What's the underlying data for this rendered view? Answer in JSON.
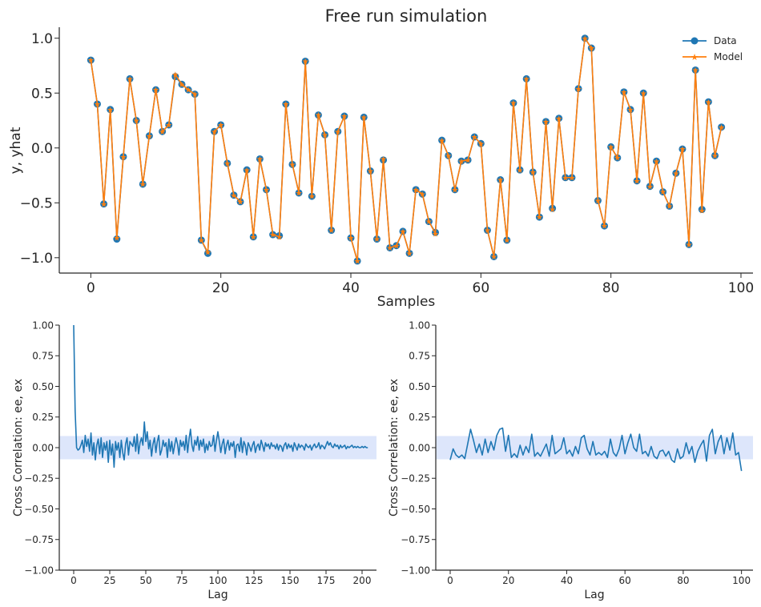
{
  "chart_data": [
    {
      "type": "line",
      "title": "Free run simulation",
      "xlabel": "Samples",
      "ylabel": "y, yhat",
      "xlim": [
        -4.85,
        101.85
      ],
      "ylim": [
        -1.14,
        1.1
      ],
      "xticks": [
        0,
        20,
        40,
        60,
        80,
        100
      ],
      "yticks": [
        -1.0,
        -0.5,
        0.0,
        0.5,
        1.0
      ],
      "ytick_labels": [
        "−1.0",
        "−0.5",
        "0.0",
        "0.5",
        "1.0"
      ],
      "grid": false,
      "legend": "top-right",
      "series": [
        {
          "name": "Data",
          "color": "#1f77b4",
          "marker": "circle",
          "values": [
            0.8,
            0.4,
            -0.51,
            0.35,
            -0.83,
            -0.08,
            0.63,
            0.25,
            -0.33,
            0.11,
            0.53,
            0.15,
            0.21,
            0.65,
            0.58,
            0.53,
            0.49,
            -0.84,
            -0.96,
            0.15,
            0.21,
            -0.14,
            -0.43,
            -0.49,
            -0.2,
            -0.81,
            -0.1,
            -0.38,
            -0.79,
            -0.8,
            0.4,
            -0.15,
            -0.41,
            0.79,
            -0.44,
            0.3,
            0.12,
            -0.75,
            0.15,
            0.29,
            -0.82,
            -1.03,
            0.28,
            -0.21,
            -0.83,
            -0.11,
            -0.91,
            -0.89,
            -0.76,
            -0.96,
            -0.38,
            -0.42,
            -0.67,
            -0.77,
            0.07,
            -0.07,
            -0.38,
            -0.12,
            -0.11,
            0.1,
            0.04,
            -0.75,
            -0.99,
            -0.29,
            -0.84,
            0.41,
            -0.2,
            0.63,
            -0.22,
            -0.63,
            0.24,
            -0.55,
            0.27,
            -0.27,
            -0.27,
            0.54,
            1.0,
            0.91,
            -0.48,
            -0.71,
            0.01,
            -0.09,
            0.51,
            0.35,
            -0.3,
            0.5,
            -0.35,
            -0.12,
            -0.4,
            -0.53,
            -0.23,
            -0.01,
            -0.88,
            0.71,
            -0.56,
            0.42,
            -0.07,
            0.19
          ]
        },
        {
          "name": "Model",
          "color": "#ff7f0e",
          "marker": "star",
          "values": [
            0.8,
            0.4,
            -0.51,
            0.35,
            -0.82,
            -0.08,
            0.63,
            0.25,
            -0.33,
            0.11,
            0.53,
            0.15,
            0.21,
            0.67,
            0.58,
            0.53,
            0.49,
            -0.84,
            -0.95,
            0.15,
            0.21,
            -0.14,
            -0.43,
            -0.49,
            -0.2,
            -0.81,
            -0.1,
            -0.38,
            -0.79,
            -0.81,
            0.4,
            -0.15,
            -0.41,
            0.79,
            -0.44,
            0.3,
            0.12,
            -0.75,
            0.15,
            0.29,
            -0.82,
            -1.03,
            0.28,
            -0.21,
            -0.83,
            -0.1,
            -0.91,
            -0.89,
            -0.76,
            -0.96,
            -0.38,
            -0.42,
            -0.67,
            -0.78,
            0.07,
            -0.07,
            -0.38,
            -0.12,
            -0.11,
            0.1,
            0.04,
            -0.75,
            -0.99,
            -0.29,
            -0.84,
            0.41,
            -0.2,
            0.63,
            -0.22,
            -0.63,
            0.24,
            -0.56,
            0.27,
            -0.27,
            -0.27,
            0.54,
            1.0,
            0.91,
            -0.48,
            -0.71,
            0.01,
            -0.09,
            0.51,
            0.35,
            -0.3,
            0.5,
            -0.35,
            -0.12,
            -0.4,
            -0.53,
            -0.23,
            -0.01,
            -0.88,
            0.71,
            -0.57,
            0.42,
            -0.07,
            0.19
          ]
        }
      ]
    },
    {
      "type": "line",
      "title": "",
      "xlabel": "Lag",
      "ylabel": "Cross Correlation: ee, ex",
      "xlim": [
        -10,
        210
      ],
      "ylim": [
        -1.0,
        1.0
      ],
      "xticks": [
        0,
        25,
        50,
        75,
        100,
        125,
        150,
        175,
        200
      ],
      "yticks": [
        1.0,
        0.75,
        0.5,
        0.25,
        0.0,
        -0.25,
        -0.5,
        -0.75,
        -1.0
      ],
      "ytick_labels": [
        "1.00",
        "0.75",
        "0.50",
        "0.25",
        "0.00",
        "−0.25",
        "−0.50",
        "−0.75",
        "−1.00"
      ],
      "confidence_band": [
        -0.095,
        0.095
      ],
      "band_color": "#dde6fb",
      "grid": false,
      "series": [
        {
          "color": "#1f77b4",
          "x_start": 0,
          "values": [
            1.0,
            0.3,
            0.0,
            -0.02,
            -0.01,
            0.02,
            0.06,
            -0.04,
            0.1,
            0.01,
            0.07,
            -0.03,
            0.12,
            -0.06,
            0.04,
            -0.1,
            0.02,
            0.07,
            -0.05,
            0.08,
            -0.08,
            0.04,
            -0.02,
            0.05,
            -0.12,
            0.06,
            -0.06,
            0.03,
            -0.16,
            0.05,
            -0.02,
            0.04,
            -0.08,
            0.06,
            -0.04,
            -0.1,
            0.03,
            0.08,
            -0.06,
            0.05,
            0.03,
            0.01,
            0.09,
            -0.03,
            0.11,
            -0.05,
            0.04,
            0.08,
            0.02,
            0.21,
            0.05,
            0.13,
            -0.01,
            0.06,
            -0.07,
            0.03,
            0.08,
            -0.04,
            0.05,
            0.1,
            -0.06,
            -0.02,
            0.06,
            0.01,
            0.04,
            -0.08,
            0.07,
            -0.03,
            0.05,
            -0.05,
            0.02,
            0.08,
            0.03,
            -0.06,
            0.06,
            0.01,
            0.05,
            -0.02,
            0.1,
            -0.04,
            0.07,
            0.15,
            0.02,
            -0.03,
            0.06,
            0.02,
            0.09,
            -0.02,
            0.06,
            0.01,
            0.07,
            -0.04,
            0.03,
            -0.02,
            0.05,
            0.01,
            0.02,
            0.1,
            -0.03,
            0.06,
            0.13,
            0.05,
            -0.04,
            0.03,
            0.07,
            -0.05,
            0.02,
            0.06,
            -0.02,
            0.04,
            0.01,
            0.05,
            -0.08,
            0.02,
            0.03,
            -0.03,
            0.08,
            -0.04,
            0.05,
            0.02,
            -0.06,
            0.04,
            0.01,
            -0.03,
            0.02,
            0.05,
            -0.04,
            0.01,
            0.03,
            -0.02,
            0.06,
            0.02,
            -0.03,
            0.04,
            0.01,
            0.03,
            -0.01,
            0.04,
            0.01,
            0.02,
            -0.01,
            0.03,
            -0.02,
            0.02,
            0.01,
            -0.03,
            0.02,
            0.04,
            -0.01,
            0.03,
            0.0,
            0.02,
            -0.03,
            0.04,
            0.01,
            -0.02,
            0.03,
            0.0,
            0.02,
            0.01,
            -0.02,
            0.03,
            0.01,
            0.0,
            0.02,
            -0.02,
            0.01,
            0.03,
            0.0,
            0.01,
            0.04,
            -0.01,
            0.02,
            0.01,
            -0.01,
            0.02,
            0.05,
            0.02,
            0.04,
            0.01,
            0.0,
            0.03,
            0.01,
            0.02,
            -0.01,
            0.02,
            0.0,
            0.01,
            0.02,
            -0.01,
            0.01,
            0.0,
            0.01,
            0.02,
            0.0,
            0.01,
            0.0,
            0.01,
            0.0,
            0.0,
            0.01,
            0.0,
            0.01,
            0.0,
            0.0
          ]
        }
      ]
    },
    {
      "type": "line",
      "title": "",
      "xlabel": "Lag",
      "ylabel": "Cross Correlation: ee, ex",
      "xlim": [
        -4.95,
        103.95
      ],
      "ylim": [
        -1.0,
        1.0
      ],
      "xticks": [
        0,
        20,
        40,
        60,
        80,
        100
      ],
      "yticks": [
        1.0,
        0.75,
        0.5,
        0.25,
        0.0,
        -0.25,
        -0.5,
        -0.75,
        -1.0
      ],
      "ytick_labels": [
        "1.00",
        "0.75",
        "0.50",
        "0.25",
        "0.00",
        "−0.25",
        "−0.50",
        "−0.75",
        "−1.00"
      ],
      "confidence_band": [
        -0.095,
        0.095
      ],
      "band_color": "#dde6fb",
      "grid": false,
      "series": [
        {
          "color": "#1f77b4",
          "x_start": 0,
          "values": [
            -0.1,
            -0.01,
            -0.06,
            -0.08,
            -0.06,
            -0.09,
            0.03,
            0.15,
            0.06,
            -0.04,
            0.03,
            -0.06,
            0.07,
            -0.04,
            0.05,
            -0.02,
            0.1,
            0.15,
            0.16,
            -0.03,
            0.1,
            -0.08,
            -0.05,
            -0.08,
            0.02,
            -0.06,
            0.01,
            -0.04,
            0.11,
            -0.07,
            -0.04,
            -0.07,
            -0.02,
            0.03,
            -0.07,
            0.1,
            -0.05,
            -0.03,
            -0.01,
            0.08,
            -0.05,
            -0.02,
            -0.07,
            0.01,
            -0.05,
            0.08,
            0.1,
            -0.01,
            -0.06,
            0.05,
            -0.06,
            -0.04,
            -0.06,
            -0.03,
            -0.08,
            0.07,
            -0.04,
            -0.07,
            -0.01,
            0.1,
            -0.05,
            0.04,
            0.11,
            0.0,
            -0.03,
            0.11,
            -0.05,
            -0.03,
            -0.07,
            0.01,
            -0.07,
            -0.09,
            -0.03,
            -0.02,
            -0.07,
            -0.03,
            -0.1,
            -0.12,
            -0.01,
            -0.09,
            -0.07,
            0.04,
            -0.05,
            0.01,
            -0.12,
            -0.03,
            0.02,
            0.06,
            -0.11,
            0.1,
            0.15,
            -0.05,
            0.05,
            0.1,
            -0.05,
            0.08,
            -0.02,
            0.12,
            -0.06,
            -0.04,
            -0.19
          ]
        }
      ]
    }
  ]
}
